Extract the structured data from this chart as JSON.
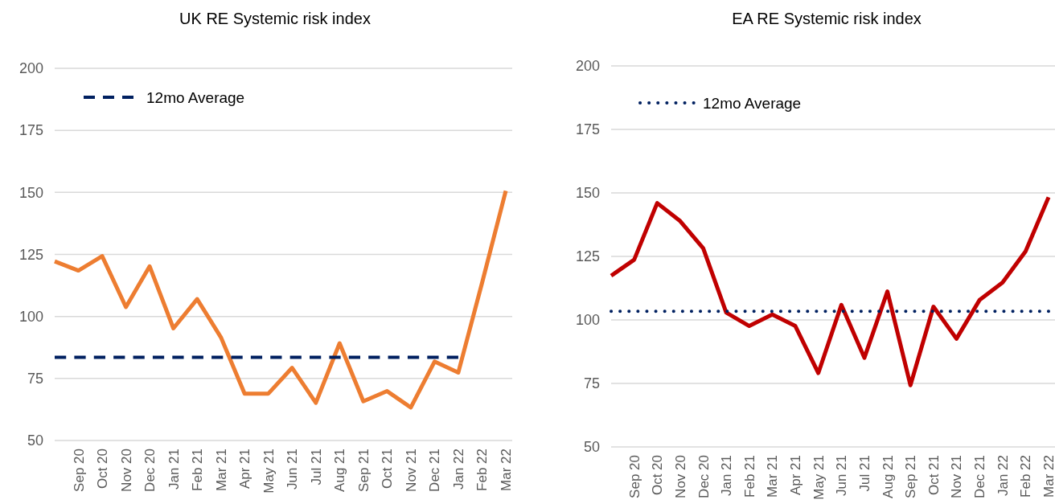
{
  "chart_data": [
    {
      "type": "line",
      "title": "UK RE Systemic risk index",
      "categories": [
        null,
        "Sep 20",
        "Oct 20",
        "Nov 20",
        "Dec 20",
        "Jan 21",
        "Feb 21",
        "Mar 21",
        "Apr 21",
        "May 21",
        "Jun 21",
        "Jul 21",
        "Aug 21",
        "Sep 21",
        "Oct 21",
        "Nov 21",
        "Dec 21",
        "Jan 22",
        "Feb 22",
        "Mar 22"
      ],
      "series": [
        {
          "color": "#ed7d31",
          "line_style": "solid",
          "values": [
            122.2,
            118.5,
            124.3,
            103.8,
            120.2,
            95.2,
            107,
            91.6,
            68.9,
            68.9,
            79.3,
            65.2,
            89.2,
            65.8,
            69.9,
            63.3,
            81.8,
            77.4,
            113.5,
            150.6
          ]
        },
        {
          "name": "12mo Average",
          "color": "#002060",
          "line_style": "dashed",
          "values": [
            83.5,
            83.5,
            83.5,
            83.5,
            83.5,
            83.5,
            83.5,
            83.5,
            83.5,
            83.5,
            83.5,
            83.5,
            83.5,
            83.5,
            83.5,
            83.5,
            83.5,
            83.5,
            null,
            null
          ]
        }
      ],
      "ylim": [
        50,
        200
      ],
      "yticks": [
        50,
        75,
        100,
        125,
        150,
        175,
        200
      ],
      "grid": "y",
      "legend": "top left",
      "marker": "none"
    },
    {
      "type": "line",
      "title": "EA RE Systemic risk index",
      "categories": [
        null,
        "Sep 20",
        "Oct 20",
        "Nov 20",
        "Dec 20",
        "Jan 21",
        "Feb 21",
        "Mar 21",
        "Apr 21",
        "May 21",
        "Jun 21",
        "Jul 21",
        "Aug 21",
        "Sep 21",
        "Oct 21",
        "Nov 21",
        "Dec 21",
        "Jan 22",
        "Feb 22",
        "Mar 22"
      ],
      "series": [
        {
          "color": "#c00000",
          "line_style": "solid",
          "values": [
            117.4,
            123.7,
            146,
            138.9,
            128.2,
            102.9,
            97.6,
            102.1,
            97.6,
            79.1,
            105.9,
            85.1,
            111.2,
            74.3,
            105.2,
            92.6,
            107.8,
            114.7,
            127,
            148.3
          ]
        },
        {
          "name": "12mo Average",
          "color": "#002060",
          "line_style": "dotted",
          "values": [
            103.4,
            103.4,
            103.4,
            103.4,
            103.4,
            103.4,
            103.4,
            103.4,
            103.4,
            103.4,
            103.4,
            103.4,
            103.4,
            103.4,
            103.4,
            103.4,
            103.4,
            103.4,
            103.4,
            103.4
          ]
        }
      ],
      "ylim": [
        50,
        200
      ],
      "yticks": [
        50,
        75,
        100,
        125,
        150,
        175,
        200
      ],
      "grid": "y",
      "legend": "top left",
      "marker": "none"
    }
  ]
}
